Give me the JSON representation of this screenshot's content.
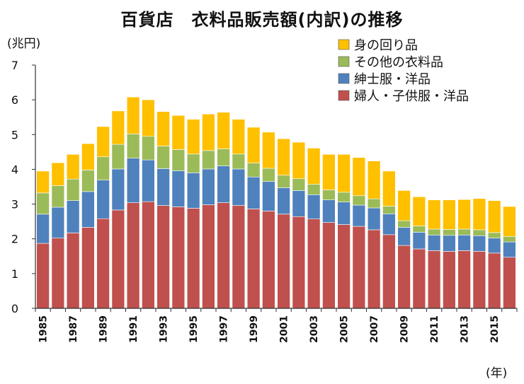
{
  "title": "百貨店　衣料品販売額(内訳)の推移",
  "chart_data": {
    "type": "bar",
    "stacked": true,
    "title": "百貨店　衣料品販売額(内訳)の推移",
    "ylabel": "(兆円)",
    "xlabel": "(年)",
    "ylim": [
      0,
      7
    ],
    "yticks": [
      "0",
      "1",
      "2",
      "3",
      "4",
      "5",
      "6",
      "7"
    ],
    "categories": [
      "1985",
      "1986",
      "1987",
      "1988",
      "1989",
      "1990",
      "1991",
      "1992",
      "1993",
      "1994",
      "1995",
      "1996",
      "1997",
      "1998",
      "1999",
      "2000",
      "2001",
      "2002",
      "2003",
      "2004",
      "2005",
      "2006",
      "2007",
      "2008",
      "2009",
      "2010",
      "2011",
      "2012",
      "2013",
      "2014",
      "2015",
      "2016"
    ],
    "xtick_labels": [
      "1985",
      "1987",
      "1989",
      "1991",
      "1993",
      "1995",
      "1997",
      "1999",
      "2001",
      "2003",
      "2005",
      "2007",
      "2009",
      "2011",
      "2013",
      "2015"
    ],
    "legend_position": "top-right",
    "series": [
      {
        "name": "婦人・子供服・洋品",
        "color": "#c0504d",
        "values": [
          1.87,
          2.02,
          2.17,
          2.33,
          2.58,
          2.83,
          3.04,
          3.07,
          2.96,
          2.92,
          2.88,
          2.98,
          3.04,
          2.96,
          2.86,
          2.8,
          2.71,
          2.64,
          2.57,
          2.47,
          2.41,
          2.36,
          2.26,
          2.12,
          1.81,
          1.71,
          1.66,
          1.64,
          1.66,
          1.64,
          1.59,
          1.47
        ]
      },
      {
        "name": "紳士服・洋品",
        "color": "#4f81bd",
        "values": [
          0.84,
          0.89,
          0.93,
          1.03,
          1.11,
          1.18,
          1.28,
          1.2,
          1.06,
          1.04,
          1.02,
          1.03,
          1.06,
          1.05,
          0.92,
          0.85,
          0.76,
          0.75,
          0.7,
          0.65,
          0.65,
          0.61,
          0.63,
          0.6,
          0.52,
          0.48,
          0.45,
          0.46,
          0.45,
          0.45,
          0.43,
          0.44
        ]
      },
      {
        "name": "その他の衣料品",
        "color": "#9bbb59",
        "values": [
          0.61,
          0.62,
          0.62,
          0.62,
          0.67,
          0.71,
          0.7,
          0.68,
          0.65,
          0.61,
          0.54,
          0.53,
          0.49,
          0.43,
          0.4,
          0.38,
          0.36,
          0.34,
          0.3,
          0.29,
          0.28,
          0.27,
          0.26,
          0.22,
          0.19,
          0.18,
          0.17,
          0.17,
          0.17,
          0.17,
          0.16,
          0.16
        ]
      },
      {
        "name": "身の回り品",
        "color": "#ffc000",
        "values": [
          0.63,
          0.66,
          0.71,
          0.76,
          0.87,
          0.96,
          1.06,
          1.05,
          0.99,
          0.98,
          1.0,
          1.05,
          1.05,
          1.0,
          1.03,
          1.04,
          1.05,
          1.05,
          1.04,
          1.02,
          1.09,
          1.1,
          1.09,
          1.01,
          0.87,
          0.84,
          0.84,
          0.85,
          0.85,
          0.9,
          0.92,
          0.86
        ]
      }
    ],
    "legend_order": [
      "身の回り品",
      "その他の衣料品",
      "紳士服・洋品",
      "婦人・子供服・洋品"
    ]
  }
}
